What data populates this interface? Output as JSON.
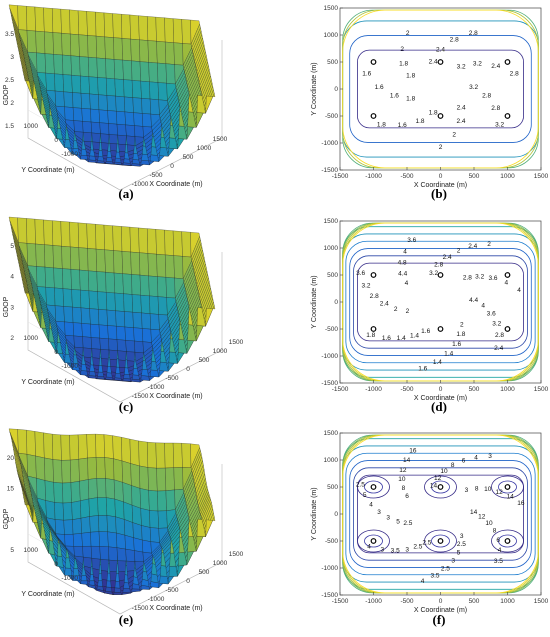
{
  "panels": [
    {
      "id": "a",
      "caption": "(a)",
      "kind": "surface",
      "z_label": "GDOP",
      "x_label": "X Coordinate (m)",
      "y_label": "Y Coordinate (m)",
      "z_ticks": [
        "3.5",
        "3",
        "2.5",
        "2",
        "1.5"
      ],
      "x_ticks": [
        "-1000",
        "-500",
        "0",
        "500",
        "1000",
        "1500"
      ],
      "y_ticks": [
        "1000",
        "0",
        "-1000"
      ]
    },
    {
      "id": "b",
      "caption": "(b)",
      "kind": "contour",
      "x_label": "X Coordinate (m)",
      "y_label": "Y Coordinate (m)",
      "x_ticks": [
        "-1500",
        "-1000",
        "-500",
        "0",
        "500",
        "1000",
        "1500"
      ],
      "y_ticks": [
        "1500",
        "1000",
        "500",
        "0",
        "-500",
        "-1000",
        "-1500"
      ],
      "contour_labels": [
        "3.2",
        "2.8",
        "2.8",
        "3.2",
        "2.4",
        "2.4",
        "2",
        "2",
        "1.8",
        "1.8",
        "1.6",
        "1.8",
        "1.8",
        "1.6",
        "1.6",
        "1.6",
        "1.8",
        "1.8",
        "2",
        "2",
        "2.4",
        "2.4",
        "2.8",
        "2.8",
        "3.2",
        "3.2",
        "2.4",
        "2.8"
      ]
    },
    {
      "id": "c",
      "caption": "(c)",
      "kind": "surface",
      "z_label": "GDOP",
      "x_label": "X Coordinate (m)",
      "y_label": "Y Coordinate (m)",
      "z_ticks": [
        "5",
        "4",
        "3",
        "2"
      ],
      "x_ticks": [
        "-1500",
        "-1000",
        "-500",
        "0",
        "500",
        "1000",
        "1500"
      ],
      "y_ticks": [
        "1000",
        "0",
        "-1000"
      ]
    },
    {
      "id": "d",
      "caption": "(d)",
      "kind": "contour",
      "x_label": "X Coordinate (m)",
      "y_label": "Y Coordinate (m)",
      "x_ticks": [
        "-1500",
        "-1000",
        "-500",
        "0",
        "500",
        "1000",
        "1500"
      ],
      "y_ticks": [
        "1500",
        "1000",
        "500",
        "0",
        "-500",
        "-1000",
        "-1500"
      ],
      "contour_labels": [
        "4.4",
        "4",
        "3.6",
        "3.2",
        "2.8",
        "2.4",
        "2",
        "1.8",
        "1.6",
        "1.4",
        "1.4",
        "1.6",
        "1.6",
        "1.4",
        "1.4",
        "1.6",
        "1.8",
        "2",
        "2",
        "2.4",
        "2.8",
        "3.2",
        "3.6",
        "4",
        "4.4",
        "4.8",
        "4",
        "3.6",
        "3.2",
        "2.8",
        "2.4",
        "2",
        "2.4",
        "2",
        "2.8",
        "3.2",
        "3.6",
        "4",
        "4"
      ]
    },
    {
      "id": "e",
      "caption": "(e)",
      "kind": "surface",
      "z_label": "GDOP",
      "x_label": "X Coordinate (m)",
      "y_label": "Y Coordinate (m)",
      "z_ticks": [
        "20",
        "15",
        "10",
        "5"
      ],
      "x_ticks": [
        "-1500",
        "-1000",
        "-500",
        "0",
        "500",
        "1000",
        "1500"
      ],
      "y_ticks": [
        "1000",
        "0",
        "-1000"
      ]
    },
    {
      "id": "f",
      "caption": "(f)",
      "kind": "contour",
      "x_label": "X Coordinate (m)",
      "y_label": "Y Coordinate (m)",
      "x_ticks": [
        "-1500",
        "-1000",
        "-500",
        "0",
        "500",
        "1000",
        "1500"
      ],
      "y_ticks": [
        "1500",
        "1000",
        "500",
        "0",
        "-500",
        "-1000",
        "-1500"
      ],
      "contour_labels": [
        "14",
        "12",
        "10",
        "8",
        "6",
        "4",
        "3.5",
        "3",
        "2.5",
        "5",
        "3",
        "2.5",
        "3.5",
        "4",
        "2.5",
        "2.5",
        "3",
        "3.5",
        "3",
        "4",
        "2.5",
        "5",
        "3",
        "3",
        "4",
        "5",
        "2.5",
        "6",
        "8",
        "10",
        "12",
        "14",
        "16",
        "14",
        "12",
        "10",
        "8",
        "6",
        "4",
        "3",
        "3",
        "8",
        "10",
        "12",
        "14",
        "16"
      ]
    }
  ],
  "chart_data": [
    {
      "type": "surface",
      "panel": "a",
      "zlabel": "GDOP",
      "xlabel": "X Coordinate (m)",
      "ylabel": "Y Coordinate (m)",
      "zlim": [
        1.3,
        3.8
      ],
      "xlim": [
        -1500,
        1500
      ],
      "ylim": [
        -1500,
        1500
      ],
      "colormap": "parula",
      "min_value": 1.5
    },
    {
      "type": "contour",
      "panel": "b",
      "xlabel": "X Coordinate (m)",
      "ylabel": "Y Coordinate (m)",
      "xlim": [
        -1500,
        1500
      ],
      "ylim": [
        -1500,
        1500
      ],
      "levels": [
        1.6,
        1.8,
        2,
        2.4,
        2.8,
        3.2
      ],
      "anchors": [
        {
          "x": -1000,
          "y": 500
        },
        {
          "x": 0,
          "y": 500
        },
        {
          "x": 1000,
          "y": 500
        },
        {
          "x": -1000,
          "y": -500
        },
        {
          "x": 0,
          "y": -500
        },
        {
          "x": 1000,
          "y": -500
        }
      ]
    },
    {
      "type": "surface",
      "panel": "c",
      "zlabel": "GDOP",
      "xlabel": "X Coordinate (m)",
      "ylabel": "Y Coordinate (m)",
      "zlim": [
        1.2,
        5.4
      ],
      "xlim": [
        -1500,
        1500
      ],
      "ylim": [
        -1500,
        1500
      ],
      "colormap": "parula",
      "min_value": 1.4
    },
    {
      "type": "contour",
      "panel": "d",
      "xlabel": "X Coordinate (m)",
      "ylabel": "Y Coordinate (m)",
      "xlim": [
        -1500,
        1500
      ],
      "ylim": [
        -1500,
        1500
      ],
      "levels": [
        1.4,
        1.6,
        1.8,
        2,
        2.4,
        2.8,
        3.2,
        3.6,
        4,
        4.4,
        4.8
      ],
      "anchors": [
        {
          "x": -1000,
          "y": 500
        },
        {
          "x": 0,
          "y": 500
        },
        {
          "x": 1000,
          "y": 500
        },
        {
          "x": -1000,
          "y": -500
        },
        {
          "x": 0,
          "y": -500
        },
        {
          "x": 1000,
          "y": -500
        }
      ]
    },
    {
      "type": "surface",
      "panel": "e",
      "zlabel": "GDOP",
      "xlabel": "X Coordinate (m)",
      "ylabel": "Y Coordinate (m)",
      "zlim": [
        1,
        22
      ],
      "xlim": [
        -1500,
        1500
      ],
      "ylim": [
        -1500,
        1500
      ],
      "colormap": "parula",
      "min_value": 2.5
    },
    {
      "type": "contour",
      "panel": "f",
      "xlabel": "X Coordinate (m)",
      "ylabel": "Y Coordinate (m)",
      "xlim": [
        -1500,
        1500
      ],
      "ylim": [
        -1500,
        1500
      ],
      "levels": [
        2.5,
        3,
        3.5,
        4,
        5,
        6,
        8,
        10,
        12,
        14,
        16
      ],
      "anchors": [
        {
          "x": -1000,
          "y": 500
        },
        {
          "x": 0,
          "y": 500
        },
        {
          "x": 1000,
          "y": 500
        },
        {
          "x": -1000,
          "y": -500
        },
        {
          "x": 0,
          "y": -500
        },
        {
          "x": 1000,
          "y": -500
        }
      ]
    }
  ]
}
